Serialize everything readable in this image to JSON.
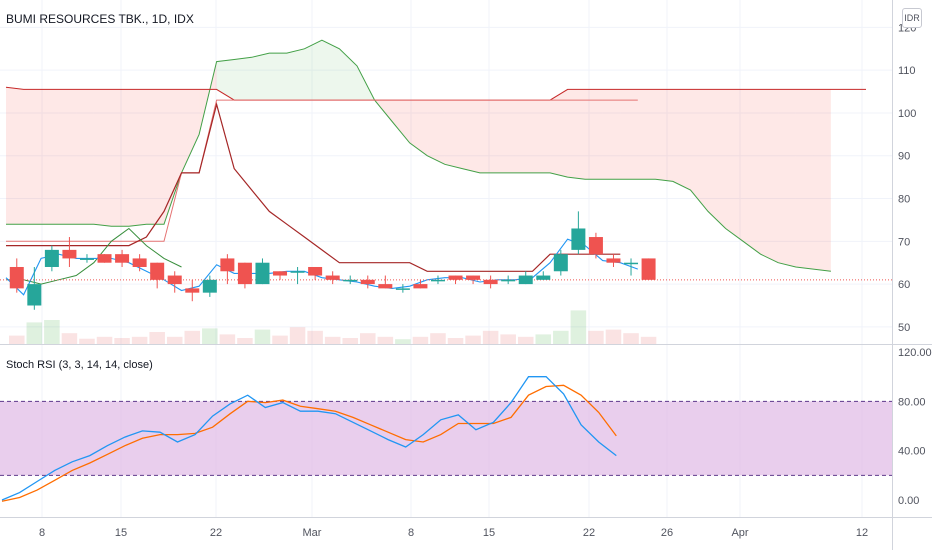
{
  "header": {
    "title": "BUMI RESOURCES TBK., 1D, IDX",
    "currency_button": "IDR"
  },
  "rsi_panel": {
    "title": "Stoch RSI (3, 3, 14, 14, close)"
  },
  "colors": {
    "bull": "#26a69a",
    "bear": "#ef5350",
    "cloud_green": "#43a047",
    "cloud_red": "#c62828",
    "rsi_k": "#2196f3",
    "rsi_d": "#ff6d00",
    "rsi_band": "#e1bee7"
  },
  "chart_data": [
    {
      "type": "candlestick",
      "x_tick_labels": [
        "8",
        "15",
        "22",
        "Mar",
        "8",
        "15",
        "22",
        "26",
        "Apr",
        "12"
      ],
      "y_ticks": [
        50,
        60,
        70,
        80,
        90,
        100,
        110,
        120
      ],
      "ylim": [
        46,
        125
      ],
      "candles": [
        {
          "o": 64,
          "h": 66,
          "l": 58,
          "c": 59
        },
        {
          "o": 55,
          "h": 64,
          "l": 54,
          "c": 60
        },
        {
          "o": 64,
          "h": 69,
          "l": 63,
          "c": 68
        },
        {
          "o": 68,
          "h": 71,
          "l": 64,
          "c": 66
        },
        {
          "o": 66,
          "h": 67,
          "l": 65,
          "c": 66
        },
        {
          "o": 67,
          "h": 67,
          "l": 65,
          "c": 65
        },
        {
          "o": 67,
          "h": 68,
          "l": 64,
          "c": 65
        },
        {
          "o": 66,
          "h": 67,
          "l": 63,
          "c": 64
        },
        {
          "o": 65,
          "h": 65,
          "l": 59,
          "c": 61
        },
        {
          "o": 62,
          "h": 63,
          "l": 58,
          "c": 60
        },
        {
          "o": 59,
          "h": 61,
          "l": 56,
          "c": 58
        },
        {
          "o": 58,
          "h": 62,
          "l": 57,
          "c": 61
        },
        {
          "o": 66,
          "h": 67,
          "l": 60,
          "c": 63
        },
        {
          "o": 65,
          "h": 65,
          "l": 59,
          "c": 60
        },
        {
          "o": 60,
          "h": 66,
          "l": 60,
          "c": 65
        },
        {
          "o": 63,
          "h": 63,
          "l": 61,
          "c": 62
        },
        {
          "o": 63,
          "h": 64,
          "l": 60,
          "c": 63
        },
        {
          "o": 64,
          "h": 64,
          "l": 61,
          "c": 62
        },
        {
          "o": 62,
          "h": 63,
          "l": 60,
          "c": 61
        },
        {
          "o": 61,
          "h": 62,
          "l": 60,
          "c": 61
        },
        {
          "o": 61,
          "h": 62,
          "l": 59,
          "c": 60
        },
        {
          "o": 60,
          "h": 62,
          "l": 59,
          "c": 59
        },
        {
          "o": 59,
          "h": 60,
          "l": 58,
          "c": 59
        },
        {
          "o": 60,
          "h": 61,
          "l": 59,
          "c": 59
        },
        {
          "o": 61,
          "h": 62,
          "l": 60,
          "c": 61
        },
        {
          "o": 62,
          "h": 62,
          "l": 60,
          "c": 61
        },
        {
          "o": 62,
          "h": 62,
          "l": 60,
          "c": 61
        },
        {
          "o": 61,
          "h": 62,
          "l": 59,
          "c": 60
        },
        {
          "o": 61,
          "h": 62,
          "l": 60,
          "c": 61
        },
        {
          "o": 60,
          "h": 63,
          "l": 60,
          "c": 62
        },
        {
          "o": 61,
          "h": 63,
          "l": 61,
          "c": 62
        },
        {
          "o": 63,
          "h": 68,
          "l": 62,
          "c": 67
        },
        {
          "o": 68,
          "h": 77,
          "l": 67,
          "c": 73
        },
        {
          "o": 71,
          "h": 72,
          "l": 66,
          "c": 67
        },
        {
          "o": 66,
          "h": 67,
          "l": 64,
          "c": 65
        },
        {
          "o": 65,
          "h": 66,
          "l": 62,
          "c": 65
        },
        {
          "o": 66,
          "h": 66,
          "l": 61,
          "c": 61
        }
      ],
      "volume": [
        {
          "v": 0.35,
          "up": false
        },
        {
          "v": 0.9,
          "up": true
        },
        {
          "v": 1.0,
          "up": true
        },
        {
          "v": 0.45,
          "up": false
        },
        {
          "v": 0.22,
          "up": false
        },
        {
          "v": 0.3,
          "up": false
        },
        {
          "v": 0.25,
          "up": false
        },
        {
          "v": 0.3,
          "up": false
        },
        {
          "v": 0.5,
          "up": false
        },
        {
          "v": 0.3,
          "up": false
        },
        {
          "v": 0.55,
          "up": false
        },
        {
          "v": 0.65,
          "up": true
        },
        {
          "v": 0.4,
          "up": false
        },
        {
          "v": 0.25,
          "up": false
        },
        {
          "v": 0.6,
          "up": true
        },
        {
          "v": 0.35,
          "up": false
        },
        {
          "v": 0.7,
          "up": false
        },
        {
          "v": 0.55,
          "up": false
        },
        {
          "v": 0.3,
          "up": false
        },
        {
          "v": 0.25,
          "up": false
        },
        {
          "v": 0.45,
          "up": false
        },
        {
          "v": 0.3,
          "up": false
        },
        {
          "v": 0.2,
          "up": true
        },
        {
          "v": 0.3,
          "up": false
        },
        {
          "v": 0.45,
          "up": false
        },
        {
          "v": 0.25,
          "up": false
        },
        {
          "v": 0.35,
          "up": false
        },
        {
          "v": 0.55,
          "up": false
        },
        {
          "v": 0.4,
          "up": false
        },
        {
          "v": 0.3,
          "up": false
        },
        {
          "v": 0.4,
          "up": true
        },
        {
          "v": 0.55,
          "up": true
        },
        {
          "v": 1.4,
          "up": true
        },
        {
          "v": 0.55,
          "up": false
        },
        {
          "v": 0.6,
          "up": false
        },
        {
          "v": 0.45,
          "up": false
        },
        {
          "v": 0.3,
          "up": false
        }
      ],
      "ichimoku": {
        "tenkan": [
          70,
          70,
          70,
          70,
          70,
          70,
          70,
          70,
          70,
          70,
          86,
          86,
          103,
          103,
          103,
          103,
          103,
          103,
          103,
          103,
          103,
          103,
          103,
          103,
          103,
          103,
          103,
          103,
          103,
          103,
          103,
          103,
          103,
          103,
          103,
          103,
          103
        ],
        "kijun_line": [
          106,
          105.5,
          105.5,
          105.5,
          105.5,
          105.5,
          105.5,
          105.5,
          105.5,
          105.5,
          105.5,
          105.5,
          105.5,
          103,
          103,
          103,
          103,
          103,
          103,
          103,
          103,
          103,
          103,
          103,
          103,
          103,
          103,
          103,
          103,
          103,
          103,
          103,
          105.5,
          105.5,
          105.5,
          105.5,
          105.5,
          105.5,
          105.5,
          105.5,
          105.5,
          105.5,
          105.5,
          105.5,
          105.5,
          105.5,
          105.5,
          105.5,
          105.5,
          105.5
        ],
        "span_a": [
          74,
          74,
          74,
          74,
          74,
          74,
          73.5,
          73.5,
          74,
          74,
          86,
          95,
          112,
          112.5,
          113,
          114,
          114,
          115,
          117,
          115,
          111,
          103,
          98,
          93,
          90,
          88,
          87,
          86,
          86,
          86,
          86,
          86,
          85,
          84.5,
          84.5,
          84.5,
          84.5,
          84.5,
          84,
          82,
          77,
          73,
          70,
          67,
          65,
          64,
          63.5,
          63
        ],
        "lag_red": [
          69,
          69,
          69,
          69,
          69,
          69,
          69,
          69,
          71,
          77,
          86,
          86,
          102,
          87,
          82,
          77,
          74,
          71,
          68,
          65,
          65,
          65,
          65,
          65,
          63,
          63,
          63,
          63,
          63,
          63,
          63,
          67,
          67,
          67,
          67,
          67
        ],
        "lag_green": [
          61,
          61,
          60,
          61,
          62,
          65,
          70,
          73,
          69,
          66,
          64
        ]
      },
      "rsi_ylim": [
        -5,
        120
      ],
      "rsi_ticks": [
        0,
        40,
        80,
        120
      ],
      "rsi_ticks_text": [
        "0.00",
        "40.00",
        "80.00",
        "120.00"
      ],
      "rsi_band": [
        20,
        80
      ],
      "rsi_k": [
        0,
        6,
        15,
        24,
        31,
        36,
        44,
        51,
        56,
        55,
        47,
        53,
        68,
        78,
        85,
        75,
        79,
        72,
        72,
        70,
        63,
        56,
        49,
        43,
        53,
        65,
        69,
        57,
        63,
        79,
        100,
        100,
        86,
        61,
        47,
        36
      ],
      "rsi_d": [
        -1,
        2,
        8,
        16,
        24,
        30,
        37,
        44,
        50,
        53,
        53,
        54,
        59,
        70,
        80,
        79,
        81,
        76,
        74,
        72,
        67,
        61,
        55,
        49,
        47,
        53,
        62,
        62,
        62,
        67,
        85,
        92,
        93,
        85,
        71,
        52
      ]
    }
  ]
}
